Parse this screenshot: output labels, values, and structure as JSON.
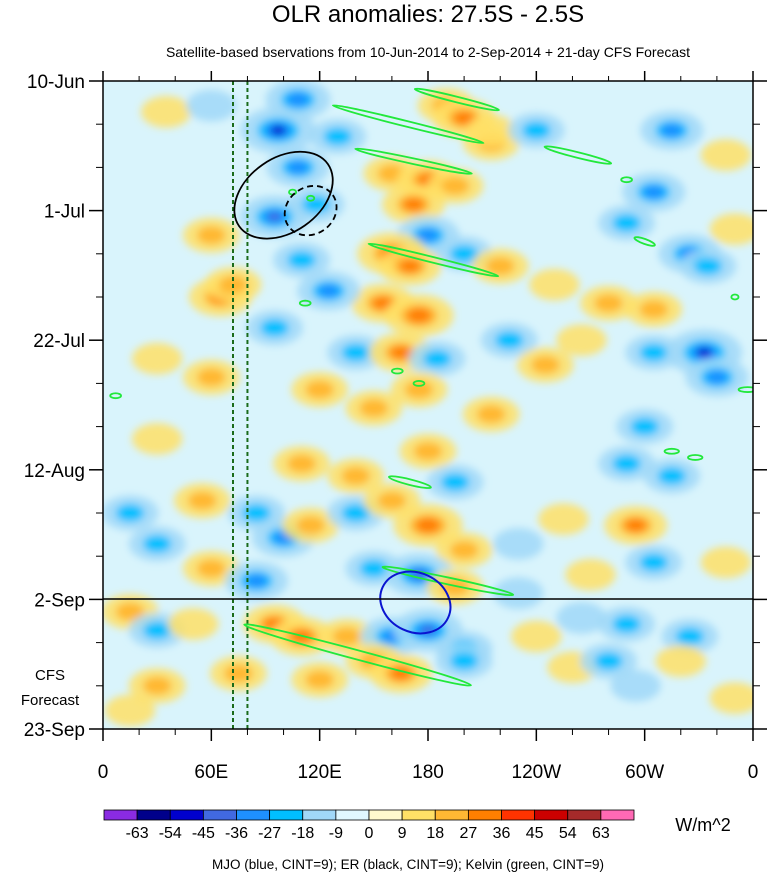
{
  "chart_data": {
    "type": "heatmap",
    "title": "OLR anomalies: 27.5S - 2.5S",
    "subtitle": "Satellite-based bservations from 10-Jun-2014 to 2-Sep-2014 + 21-day CFS Forecast",
    "x_ticks": [
      "0",
      "60E",
      "120E",
      "180",
      "120W",
      "60W",
      "0"
    ],
    "x_tick_lons": [
      0,
      60,
      120,
      180,
      240,
      300,
      360
    ],
    "y_ticks": [
      "10-Jun",
      "1-Jul",
      "22-Jul",
      "12-Aug",
      "2-Sep",
      "23-Sep"
    ],
    "y_tick_days": [
      0,
      21,
      42,
      63,
      84,
      105
    ],
    "x_range_deg": [
      0,
      360
    ],
    "y_range_days": [
      0,
      105
    ],
    "observation_end_label": "2-Sep",
    "forecast_label_lines": [
      "CFS",
      "Forecast"
    ],
    "colorbar": {
      "units": "W/m^2",
      "levels": [
        "-63",
        "-54",
        "-45",
        "-36",
        "-27",
        "-18",
        "-9",
        "0",
        "9",
        "18",
        "27",
        "36",
        "45",
        "54",
        "63"
      ],
      "colors": [
        "#8a2be2",
        "#00008b",
        "#0000cd",
        "#4169e1",
        "#1e90ff",
        "#00bfff",
        "#a0d8f8",
        "#e0f8ff",
        "#fffacd",
        "#ffe066",
        "#ffb833",
        "#ff7f00",
        "#ff3300",
        "#cc0000",
        "#a52a2a",
        "#ff69b4"
      ]
    },
    "reference_lons": [
      72,
      80
    ],
    "contour_legend": "MJO (blue, CINT=9); ER (black, CINT=9); Kelvin (green, CINT=9)",
    "colors": {
      "mjo": "#0a14d0",
      "er": "#000000",
      "kelvin": "#22e83c",
      "reference_line": "#1a6b1a",
      "background": "#d9f4fc"
    },
    "anomaly_blobs": [
      {
        "lon": 108,
        "day": 3,
        "v": -30
      },
      {
        "lon": 97,
        "day": 8,
        "v": -45
      },
      {
        "lon": 130,
        "day": 9,
        "v": -18
      },
      {
        "lon": 35,
        "day": 5,
        "v": 9
      },
      {
        "lon": 60,
        "day": 4,
        "v": -9
      },
      {
        "lon": 190,
        "day": 4,
        "v": 18
      },
      {
        "lon": 200,
        "day": 6,
        "v": 27
      },
      {
        "lon": 215,
        "day": 10,
        "v": 18
      },
      {
        "lon": 215,
        "day": 8,
        "v": 9
      },
      {
        "lon": 240,
        "day": 8,
        "v": -18
      },
      {
        "lon": 315,
        "day": 8,
        "v": -27
      },
      {
        "lon": 345,
        "day": 12,
        "v": 9
      },
      {
        "lon": 160,
        "day": 15,
        "v": 18
      },
      {
        "lon": 180,
        "day": 16,
        "v": 27
      },
      {
        "lon": 195,
        "day": 17,
        "v": 18
      },
      {
        "lon": 108,
        "day": 14,
        "v": -27
      },
      {
        "lon": 95,
        "day": 22,
        "v": -36
      },
      {
        "lon": 118,
        "day": 20,
        "v": -18
      },
      {
        "lon": 172,
        "day": 20,
        "v": 27
      },
      {
        "lon": 180,
        "day": 25,
        "v": -27
      },
      {
        "lon": 200,
        "day": 28,
        "v": -18
      },
      {
        "lon": 305,
        "day": 18,
        "v": -27
      },
      {
        "lon": 290,
        "day": 23,
        "v": -18
      },
      {
        "lon": 325,
        "day": 28,
        "v": -27
      },
      {
        "lon": 350,
        "day": 24,
        "v": 9
      },
      {
        "lon": 60,
        "day": 25,
        "v": 18
      },
      {
        "lon": 65,
        "day": 35,
        "v": 27
      },
      {
        "lon": 72,
        "day": 33,
        "v": 18
      },
      {
        "lon": 160,
        "day": 28,
        "v": 36
      },
      {
        "lon": 170,
        "day": 30,
        "v": 27
      },
      {
        "lon": 155,
        "day": 36,
        "v": 27
      },
      {
        "lon": 175,
        "day": 38,
        "v": 36
      },
      {
        "lon": 125,
        "day": 34,
        "v": -27
      },
      {
        "lon": 110,
        "day": 29,
        "v": -18
      },
      {
        "lon": 220,
        "day": 30,
        "v": 18
      },
      {
        "lon": 250,
        "day": 33,
        "v": 9
      },
      {
        "lon": 280,
        "day": 36,
        "v": 18
      },
      {
        "lon": 305,
        "day": 37,
        "v": 18
      },
      {
        "lon": 335,
        "day": 30,
        "v": -18
      },
      {
        "lon": 95,
        "day": 40,
        "v": -18
      },
      {
        "lon": 140,
        "day": 44,
        "v": -18
      },
      {
        "lon": 165,
        "day": 44,
        "v": 27
      },
      {
        "lon": 185,
        "day": 45,
        "v": -18
      },
      {
        "lon": 225,
        "day": 42,
        "v": -18
      },
      {
        "lon": 245,
        "day": 46,
        "v": 18
      },
      {
        "lon": 265,
        "day": 42,
        "v": 9
      },
      {
        "lon": 305,
        "day": 44,
        "v": -18
      },
      {
        "lon": 333,
        "day": 44,
        "v": -45
      },
      {
        "lon": 340,
        "day": 48,
        "v": -27
      },
      {
        "lon": 30,
        "day": 45,
        "v": 9
      },
      {
        "lon": 60,
        "day": 48,
        "v": 18
      },
      {
        "lon": 120,
        "day": 50,
        "v": 18
      },
      {
        "lon": 150,
        "day": 53,
        "v": 18
      },
      {
        "lon": 175,
        "day": 50,
        "v": 18
      },
      {
        "lon": 215,
        "day": 54,
        "v": 18
      },
      {
        "lon": 300,
        "day": 56,
        "v": -18
      },
      {
        "lon": 30,
        "day": 58,
        "v": 9
      },
      {
        "lon": 110,
        "day": 62,
        "v": 18
      },
      {
        "lon": 140,
        "day": 64,
        "v": 18
      },
      {
        "lon": 180,
        "day": 60,
        "v": 18
      },
      {
        "lon": 195,
        "day": 65,
        "v": -18
      },
      {
        "lon": 290,
        "day": 62,
        "v": -18
      },
      {
        "lon": 315,
        "day": 64,
        "v": -18
      },
      {
        "lon": 15,
        "day": 70,
        "v": -18
      },
      {
        "lon": 30,
        "day": 75,
        "v": -18
      },
      {
        "lon": 55,
        "day": 68,
        "v": 18
      },
      {
        "lon": 85,
        "day": 70,
        "v": -18
      },
      {
        "lon": 100,
        "day": 74,
        "v": -27
      },
      {
        "lon": 115,
        "day": 72,
        "v": 18
      },
      {
        "lon": 140,
        "day": 70,
        "v": -18
      },
      {
        "lon": 160,
        "day": 68,
        "v": 18
      },
      {
        "lon": 180,
        "day": 72,
        "v": 36
      },
      {
        "lon": 200,
        "day": 76,
        "v": 18
      },
      {
        "lon": 230,
        "day": 75,
        "v": -9
      },
      {
        "lon": 255,
        "day": 71,
        "v": 9
      },
      {
        "lon": 295,
        "day": 72,
        "v": 27
      },
      {
        "lon": 305,
        "day": 78,
        "v": -18
      },
      {
        "lon": 345,
        "day": 78,
        "v": 9
      },
      {
        "lon": 60,
        "day": 79,
        "v": 18
      },
      {
        "lon": 85,
        "day": 81,
        "v": -27
      },
      {
        "lon": 150,
        "day": 79,
        "v": -18
      },
      {
        "lon": 175,
        "day": 80,
        "v": -36
      },
      {
        "lon": 195,
        "day": 82,
        "v": 18
      },
      {
        "lon": 230,
        "day": 83,
        "v": -9
      },
      {
        "lon": 270,
        "day": 80,
        "v": 9
      },
      {
        "lon": 15,
        "day": 86,
        "v": 18
      },
      {
        "lon": 30,
        "day": 89,
        "v": -18
      },
      {
        "lon": 50,
        "day": 88,
        "v": 9
      },
      {
        "lon": 95,
        "day": 88,
        "v": 27
      },
      {
        "lon": 110,
        "day": 90,
        "v": 27
      },
      {
        "lon": 135,
        "day": 90,
        "v": 18
      },
      {
        "lon": 160,
        "day": 90,
        "v": -27
      },
      {
        "lon": 180,
        "day": 89,
        "v": -36
      },
      {
        "lon": 200,
        "day": 92,
        "v": -18
      },
      {
        "lon": 240,
        "day": 90,
        "v": 9
      },
      {
        "lon": 265,
        "day": 87,
        "v": -9
      },
      {
        "lon": 290,
        "day": 88,
        "v": -18
      },
      {
        "lon": 325,
        "day": 90,
        "v": -18
      },
      {
        "lon": 30,
        "day": 98,
        "v": 18
      },
      {
        "lon": 75,
        "day": 96,
        "v": 18
      },
      {
        "lon": 120,
        "day": 97,
        "v": 18
      },
      {
        "lon": 150,
        "day": 94,
        "v": 18
      },
      {
        "lon": 165,
        "day": 96,
        "v": 27
      },
      {
        "lon": 200,
        "day": 94,
        "v": -18
      },
      {
        "lon": 260,
        "day": 95,
        "v": 9
      },
      {
        "lon": 280,
        "day": 94,
        "v": -18
      },
      {
        "lon": 295,
        "day": 98,
        "v": -9
      },
      {
        "lon": 320,
        "day": 94,
        "v": 9
      },
      {
        "lon": 350,
        "day": 100,
        "v": 9
      },
      {
        "lon": 15,
        "day": 102,
        "v": 9
      }
    ],
    "mjo_contours": [
      {
        "lon": 173,
        "day": 84.5,
        "a_lon": 20,
        "a_day": 4.8,
        "angle": 25,
        "dashed": false
      }
    ],
    "er_contours": [
      {
        "lon": 100,
        "day": 18.5,
        "a_lon": 30,
        "a_day": 6.0,
        "angle": -35,
        "dashed": false
      },
      {
        "lon": 115,
        "day": 21.0,
        "a_lon": 15,
        "a_day": 3.8,
        "angle": -35,
        "dashed": true
      }
    ],
    "kelvin_contours": [
      {
        "lon": 196,
        "day": 3,
        "a_lon": 24,
        "a_day": 0.45,
        "angle": 14,
        "dashed": false
      },
      {
        "lon": 169,
        "day": 7,
        "a_lon": 43,
        "a_day": 0.45,
        "angle": 14,
        "dashed": false
      },
      {
        "lon": 172,
        "day": 13,
        "a_lon": 33,
        "a_day": 0.45,
        "angle": 12,
        "dashed": false
      },
      {
        "lon": 183,
        "day": 29,
        "a_lon": 37,
        "a_day": 0.45,
        "angle": 14,
        "dashed": false
      },
      {
        "lon": 263,
        "day": 12,
        "a_lon": 19,
        "a_day": 0.45,
        "angle": 14,
        "dashed": false
      },
      {
        "lon": 170,
        "day": 65,
        "a_lon": 12,
        "a_day": 0.45,
        "angle": 14,
        "dashed": false
      },
      {
        "lon": 191,
        "day": 81,
        "a_lon": 37,
        "a_day": 0.55,
        "angle": 12,
        "dashed": false
      },
      {
        "lon": 141,
        "day": 93,
        "a_lon": 65,
        "a_day": 0.75,
        "angle": 15,
        "dashed": false
      },
      {
        "lon": 105,
        "day": 18,
        "a_lon": 2,
        "a_day": 0.4,
        "angle": 0,
        "dashed": false
      },
      {
        "lon": 115,
        "day": 19,
        "a_lon": 2,
        "a_day": 0.4,
        "angle": 0,
        "dashed": false
      },
      {
        "lon": 112,
        "day": 36,
        "a_lon": 3,
        "a_day": 0.4,
        "angle": 0,
        "dashed": false
      },
      {
        "lon": 163,
        "day": 47,
        "a_lon": 3,
        "a_day": 0.4,
        "angle": 0,
        "dashed": false
      },
      {
        "lon": 175,
        "day": 49,
        "a_lon": 3,
        "a_day": 0.4,
        "angle": 0,
        "dashed": false
      },
      {
        "lon": 7,
        "day": 51,
        "a_lon": 3,
        "a_day": 0.4,
        "angle": 0,
        "dashed": false
      },
      {
        "lon": 315,
        "day": 60,
        "a_lon": 4,
        "a_day": 0.4,
        "angle": 0,
        "dashed": false
      },
      {
        "lon": 328,
        "day": 61,
        "a_lon": 4,
        "a_day": 0.4,
        "angle": 0,
        "dashed": false
      },
      {
        "lon": 357,
        "day": 50,
        "a_lon": 5,
        "a_day": 0.4,
        "angle": 0,
        "dashed": false
      },
      {
        "lon": 300,
        "day": 26,
        "a_lon": 6,
        "a_day": 0.4,
        "angle": 20,
        "dashed": false
      },
      {
        "lon": 290,
        "day": 16,
        "a_lon": 3,
        "a_day": 0.4,
        "angle": 0,
        "dashed": false
      },
      {
        "lon": 350,
        "day": 35,
        "a_lon": 2,
        "a_day": 0.4,
        "angle": 0,
        "dashed": false
      }
    ]
  }
}
